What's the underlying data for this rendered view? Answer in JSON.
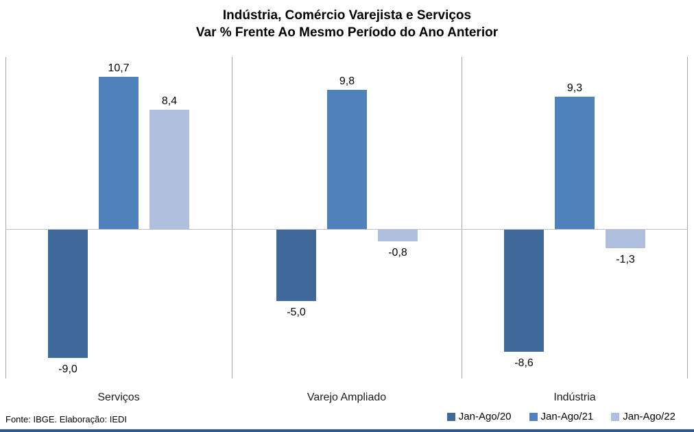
{
  "title": {
    "line1": "Indústria, Comércio Varejista e Serviços",
    "line2": "Var % Frente Ao Mesmo Período do Ano Anterior"
  },
  "footer": {
    "source": "Fonte: IBGE. Elaboração: IEDI"
  },
  "colors": {
    "separator_line": "#A6A6A6",
    "zero_axis_line": "#BFBFBF",
    "bottom_accent_strip": "#2E5B8F"
  },
  "chart_data": {
    "type": "bar",
    "title": "Indústria, Comércio Varejista e Serviços — Var % Frente Ao Mesmo Período do Ano Anterior",
    "categories": [
      "Serviços",
      "Varejo Ampliado",
      "Indústria"
    ],
    "series": [
      {
        "name": "Jan-Ago/20",
        "color": "#40699B",
        "values": [
          -9.0,
          -5.0,
          -8.6
        ],
        "labels": [
          "-9,0",
          "-5,0",
          "-8,6"
        ]
      },
      {
        "name": "Jan-Ago/21",
        "color": "#4F81BD",
        "values": [
          10.7,
          9.8,
          9.3
        ],
        "labels": [
          "10,7",
          "9,8",
          "9,3"
        ]
      },
      {
        "name": "Jan-Ago/22",
        "color": "#AFBFDD",
        "values": [
          8.4,
          -0.8,
          -1.3
        ],
        "labels": [
          "8,4",
          "-0,8",
          "-1,3"
        ]
      }
    ],
    "xlabel": "",
    "ylabel": "",
    "ylim": [
      -10.5,
      12.1
    ],
    "grid": "vertical category separators only, no horizontal gridlines, no value axis labels",
    "data_labels": "outside end, comma decimal separator",
    "legend_position": "bottom-right"
  }
}
